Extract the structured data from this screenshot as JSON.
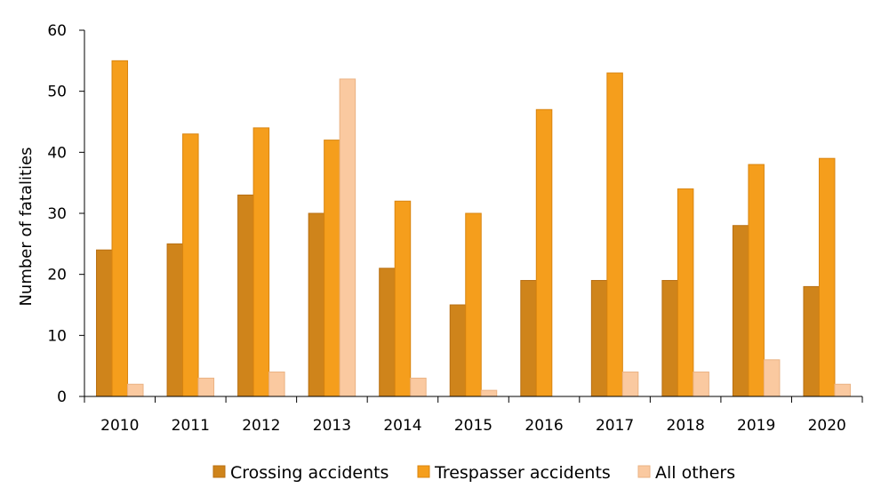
{
  "chart_data": {
    "type": "bar",
    "title": "",
    "xlabel": "",
    "ylabel": "Number of fatalities",
    "ylim": [
      0,
      60
    ],
    "yticks": [
      0,
      10,
      20,
      30,
      40,
      50,
      60
    ],
    "grid": false,
    "legend_position": "bottom",
    "categories": [
      "2010",
      "2011",
      "2012",
      "2013",
      "2014",
      "2015",
      "2016",
      "2017",
      "2018",
      "2019",
      "2020"
    ],
    "series": [
      {
        "name": "Crossing accidents",
        "color": "#CF841B",
        "stroke": "#B86F12",
        "values": [
          24,
          25,
          33,
          30,
          21,
          15,
          19,
          19,
          19,
          28,
          18
        ]
      },
      {
        "name": "Trespasser accidents",
        "color": "#F59E1C",
        "stroke": "#D98510",
        "values": [
          55,
          43,
          44,
          42,
          32,
          30,
          47,
          53,
          34,
          38,
          39
        ]
      },
      {
        "name": "All others",
        "color": "#FAC9A0",
        "stroke": "#EAB283",
        "values": [
          2,
          3,
          4,
          52,
          3,
          1,
          0,
          4,
          4,
          6,
          2
        ]
      }
    ]
  }
}
